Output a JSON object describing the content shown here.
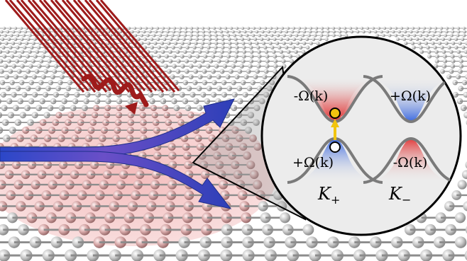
{
  "inset": {
    "valleys": [
      {
        "name": "K+",
        "upper_label": "-Ω(k)",
        "lower_label": "+Ω(k)",
        "upper_color": "#e23a3a",
        "lower_color": "#3a68e0",
        "sub_label_main": "K",
        "sub_label_sign": "+"
      },
      {
        "name": "K-",
        "upper_label": "+Ω(k)",
        "lower_label": "-Ω(k)",
        "upper_color": "#3a68e0",
        "lower_color": "#e23a3a",
        "sub_label_main": "K",
        "sub_label_sign": "−"
      }
    ],
    "transition": {
      "from": "lower-band",
      "to": "upper-band",
      "electron_color": "#f1c40f",
      "hole_color": "#ffffff"
    }
  },
  "scene": {
    "lattice_atom_color": "#b9b9b9",
    "laser_color": "#9e1b1b",
    "beam_color": "#3b4fc4",
    "spot_color": "#f2b5b5"
  }
}
